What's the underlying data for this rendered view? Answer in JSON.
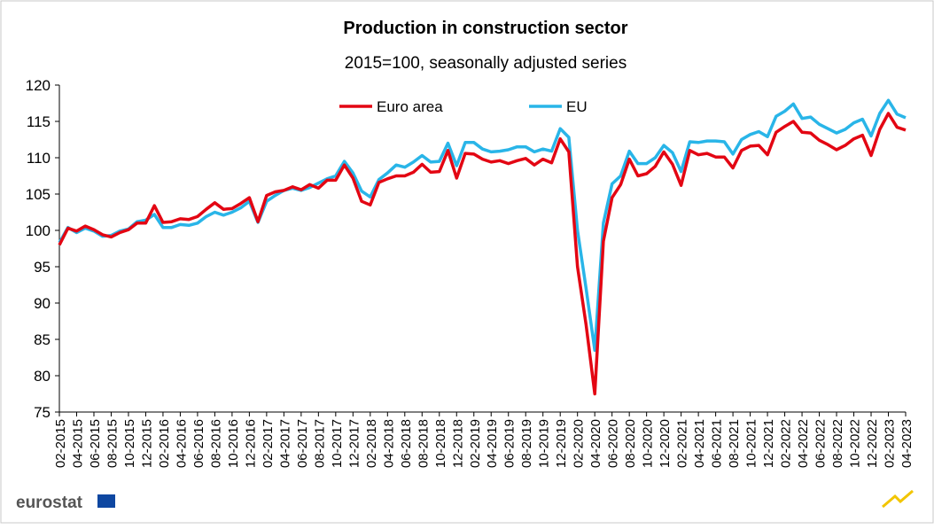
{
  "chart_data": {
    "type": "line",
    "title": "Production in construction sector",
    "subtitle": "2015=100, seasonally adjusted series",
    "source_logo": "eurostat",
    "categories": [
      "02-2015",
      null,
      "04-2015",
      null,
      "06-2015",
      null,
      "08-2015",
      null,
      "10-2015",
      null,
      "12-2015",
      null,
      "02-2016",
      null,
      "04-2016",
      null,
      "06-2016",
      null,
      "08-2016",
      null,
      "10-2016",
      null,
      "12-2016",
      null,
      "02-2017",
      null,
      "04-2017",
      null,
      "06-2017",
      null,
      "08-2017",
      null,
      "10-2017",
      null,
      "12-2017",
      null,
      "02-2018",
      null,
      "04-2018",
      null,
      "06-2018",
      null,
      "08-2018",
      null,
      "10-2018",
      null,
      "12-2018",
      null,
      "02-2019",
      null,
      "04-2019",
      null,
      "06-2019",
      null,
      "08-2019",
      null,
      "10-2019",
      null,
      "12-2019",
      null,
      "02-2020",
      null,
      "04-2020",
      null,
      "06-2020",
      null,
      "08-2020",
      null,
      "10-2020",
      null,
      "12-2020",
      null,
      "02-2021",
      null,
      "04-2021",
      null,
      "06-2021",
      null,
      "08-2021",
      null,
      "10-2021",
      null,
      "12-2021",
      null,
      "02-2022",
      null,
      "04-2022",
      null,
      "06-2022",
      null,
      "08-2022",
      null,
      "10-2022",
      null,
      "12-2022",
      null,
      "02-2023",
      null,
      "04-2023"
    ],
    "series": [
      {
        "name": "Euro area",
        "color": "#e30613",
        "values": [
          98,
          100.3,
          99.9,
          100.6,
          100.1,
          99.4,
          99.1,
          99.7,
          100.1,
          101.0,
          101.0,
          103.4,
          101.1,
          101.2,
          101.6,
          101.5,
          101.9,
          102.9,
          103.8,
          102.9,
          103.0,
          103.7,
          104.5,
          101.2,
          104.8,
          105.3,
          105.5,
          106.0,
          105.6,
          106.3,
          105.8,
          106.9,
          106.9,
          109.0,
          107.2,
          104.0,
          103.5,
          106.6,
          107.1,
          107.5,
          107.5,
          108.0,
          109.1,
          108.0,
          108.1,
          111.0,
          107.2,
          110.6,
          110.5,
          109.8,
          109.4,
          109.6,
          109.2,
          109.6,
          109.9,
          109.0,
          109.8,
          109.3,
          112.6,
          110.8,
          95,
          87,
          77.5,
          98.5,
          104.5,
          106.3,
          109.8,
          107.5,
          107.8,
          108.8,
          110.8,
          109.1,
          106.2,
          111.0,
          110.4,
          110.6,
          110.1,
          110.1,
          108.6,
          111.0,
          111.6,
          111.7,
          110.4,
          113.5,
          114.3,
          115.0,
          113.5,
          113.4,
          112.4,
          111.8,
          111.1,
          111.7,
          112.6,
          113.1,
          110.3,
          113.9,
          116.1,
          114.2,
          113.8
        ]
      },
      {
        "name": "EU",
        "color": "#29b5e8",
        "values": [
          98.3,
          100.4,
          99.7,
          100.3,
          99.9,
          99.2,
          99.3,
          99.9,
          100.2,
          101.2,
          101.4,
          102.2,
          100.4,
          100.4,
          100.8,
          100.7,
          101.0,
          101.9,
          102.5,
          102.1,
          102.5,
          103.1,
          104.0,
          101.1,
          104.0,
          104.8,
          105.5,
          105.8,
          105.5,
          105.9,
          106.5,
          107.1,
          107.5,
          109.5,
          107.9,
          105.4,
          104.6,
          107.0,
          107.9,
          109.0,
          108.7,
          109.4,
          110.3,
          109.4,
          109.5,
          112.0,
          108.9,
          112.1,
          112.1,
          111.2,
          110.8,
          110.9,
          111.1,
          111.5,
          111.5,
          110.8,
          111.2,
          110.9,
          114.0,
          112.8,
          100,
          92,
          83.5,
          101,
          106.4,
          107.5,
          110.9,
          109.2,
          109.2,
          110.0,
          111.7,
          110.7,
          108.1,
          112.2,
          112.1,
          112.3,
          112.3,
          112.2,
          110.5,
          112.5,
          113.2,
          113.6,
          112.9,
          115.7,
          116.4,
          117.4,
          115.4,
          115.6,
          114.6,
          114.0,
          113.4,
          113.9,
          114.8,
          115.3,
          113.0,
          116.1,
          117.9,
          116.0,
          115.5
        ]
      }
    ],
    "ylim": [
      75,
      120
    ],
    "yticks": [
      75,
      80,
      85,
      90,
      95,
      100,
      105,
      110,
      115,
      120
    ],
    "grid": false,
    "legend": "top"
  }
}
